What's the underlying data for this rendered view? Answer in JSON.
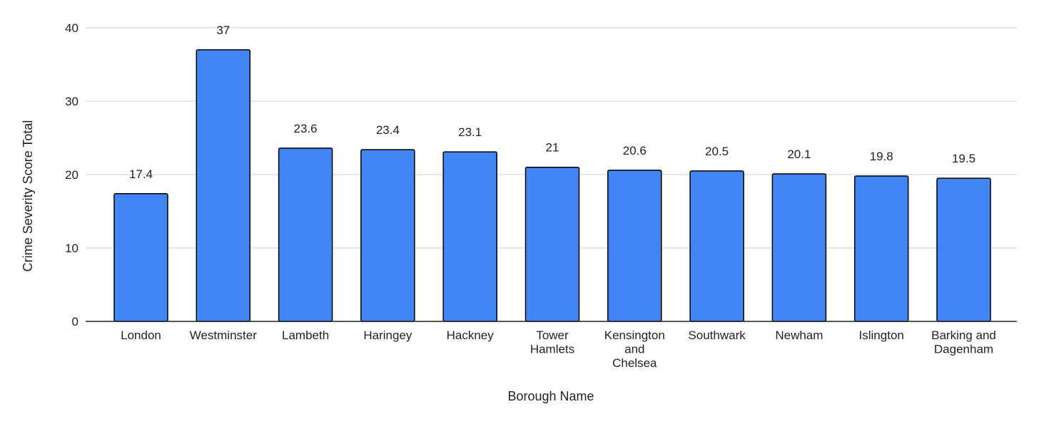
{
  "chart_data": {
    "type": "bar",
    "title": "",
    "xlabel": "Borough Name",
    "ylabel": "Crime Severity Score Total",
    "ylim": [
      0,
      40
    ],
    "yticks": [
      0,
      10,
      20,
      30,
      40
    ],
    "grid": true,
    "legend": "none",
    "bar_color": "#4285F4",
    "bar_stroke": "#000000",
    "gridline_color": "#cccccc",
    "categories": [
      "London",
      "Westminster",
      "Lambeth",
      "Haringey",
      "Hackney",
      "Tower Hamlets",
      "Kensington and Chelsea",
      "Southwark",
      "Newham",
      "Islington",
      "Barking and Dagenham"
    ],
    "category_lines": [
      [
        "London"
      ],
      [
        "Westminster"
      ],
      [
        "Lambeth"
      ],
      [
        "Haringey"
      ],
      [
        "Hackney"
      ],
      [
        "Tower",
        "Hamlets"
      ],
      [
        "Kensington",
        "and",
        "Chelsea"
      ],
      [
        "Southwark"
      ],
      [
        "Newham"
      ],
      [
        "Islington"
      ],
      [
        "Barking and",
        "Dagenham"
      ]
    ],
    "values": [
      17.4,
      37,
      23.6,
      23.4,
      23.1,
      21,
      20.6,
      20.5,
      20.1,
      19.8,
      19.5
    ]
  }
}
